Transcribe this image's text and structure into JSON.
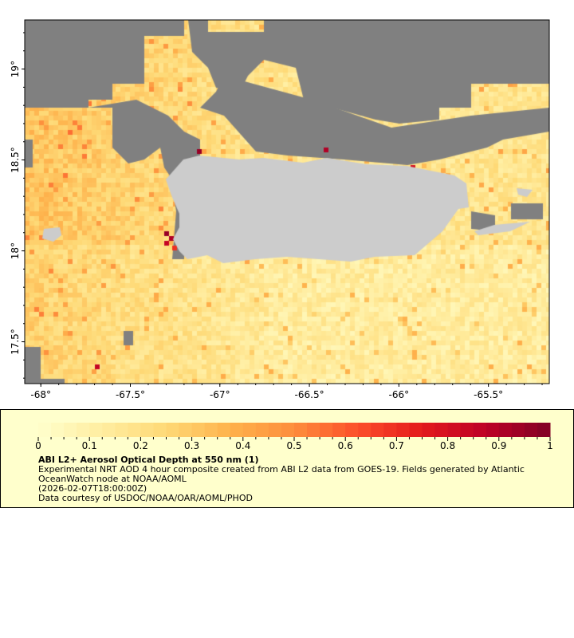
{
  "map": {
    "lon_ticks": [
      "-68°",
      "-67.5°",
      "-67°",
      "-66.5°",
      "-66°",
      "-65.5°"
    ],
    "lon_values": [
      -68,
      -67.5,
      -67,
      -66.5,
      -66,
      -65.5
    ],
    "lat_ticks": [
      "19°",
      "18.5°",
      "18°",
      "17.5°"
    ],
    "lat_values": [
      19,
      18.5,
      18,
      17.5
    ],
    "lon_range": [
      -68.09,
      -65.16
    ],
    "lat_range": [
      17.27,
      19.27
    ],
    "colors": {
      "no_data": "#808080",
      "land": "#cccccc",
      "palette": [
        "#ffffcc",
        "#ffeda0",
        "#fed976",
        "#feb24c",
        "#fd8d3c",
        "#fc4e2a",
        "#e31a1c",
        "#bd0026",
        "#800026"
      ]
    }
  },
  "legend": {
    "ticks": [
      "0",
      "0.1",
      "0.2",
      "0.3",
      "0.4",
      "0.5",
      "0.6",
      "0.7",
      "0.8",
      "0.9",
      "1"
    ],
    "range": [
      0,
      1
    ],
    "title": "ABI L2+ Aerosol Optical Depth at 550 nm (1)",
    "line1": "Experimental NRT AOD 4 hour composite created from ABI L2 data from GOES-19. Fields generated by Atlantic",
    "line2": "OceanWatch node at NOAA/AOML",
    "line3": "(2026-02-07T18:00:00Z)",
    "line4": "Data courtesy of USDOC/NOAA/OAR/AOML/PHOD"
  }
}
